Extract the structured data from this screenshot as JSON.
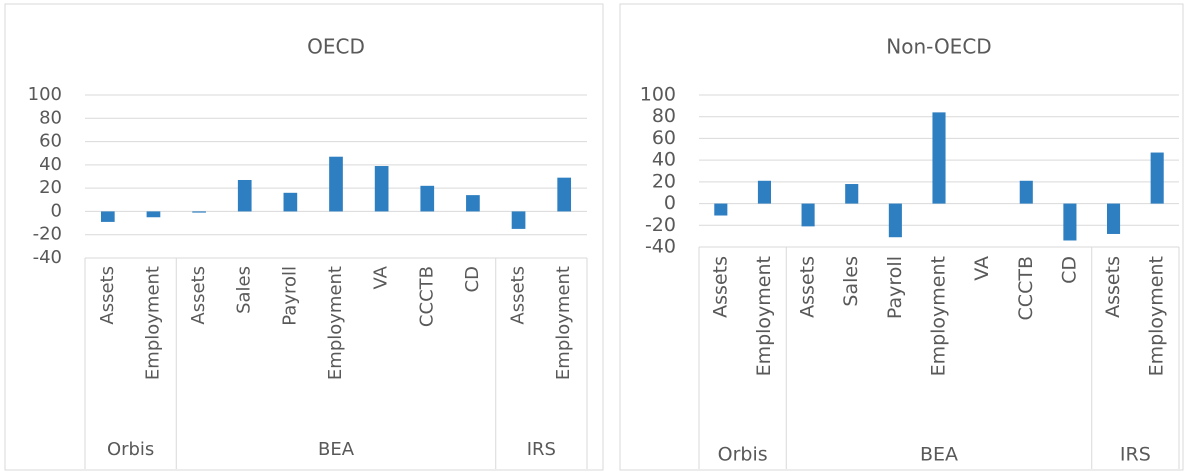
{
  "chart_data": [
    {
      "type": "bar",
      "title": "OECD",
      "groups": [
        {
          "name": "Orbis",
          "categories": [
            "Assets",
            "Employment"
          ]
        },
        {
          "name": "BEA",
          "categories": [
            "Assets",
            "Sales",
            "Payroll",
            "Employment",
            "VA",
            "CCCTB",
            "CD"
          ]
        },
        {
          "name": "IRS",
          "categories": [
            "Assets",
            "Employment"
          ]
        }
      ],
      "values": [
        -9,
        -5,
        -1,
        27,
        16,
        47,
        39,
        22,
        14,
        -15,
        29
      ],
      "color": "#2e7fc1",
      "ylim": [
        -40,
        100
      ],
      "yticks": [
        -40,
        -20,
        0,
        20,
        40,
        60,
        80,
        100
      ],
      "grid": true
    },
    {
      "type": "bar",
      "title": "Non-OECD",
      "groups": [
        {
          "name": "Orbis",
          "categories": [
            "Assets",
            "Employment"
          ]
        },
        {
          "name": "BEA",
          "categories": [
            "Assets",
            "Sales",
            "Payroll",
            "Employment",
            "VA",
            "CCCTB",
            "CD"
          ]
        },
        {
          "name": "IRS",
          "categories": [
            "Assets",
            "Employment"
          ]
        }
      ],
      "values": [
        -11,
        21,
        -21,
        18,
        -31,
        84,
        0,
        21,
        -34,
        -28,
        47
      ],
      "color": "#2e7fc1",
      "ylim": [
        -40,
        100
      ],
      "yticks": [
        -40,
        -20,
        0,
        20,
        40,
        60,
        80,
        100
      ],
      "grid": true
    }
  ]
}
